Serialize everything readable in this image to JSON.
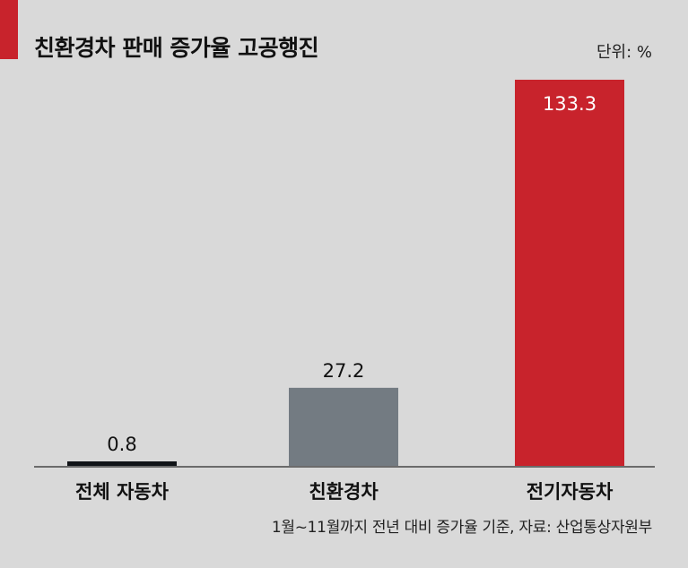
{
  "header": {
    "title": "친환경차 판매 증가율 고공행진",
    "unit": "단위: %"
  },
  "footer": {
    "source": "1월~11월까지 전년 대비 증가율 기준, 자료: 산업통상자원부"
  },
  "colors": {
    "accent": "#c8232c",
    "background": "#d9d9d9",
    "bar_total": "#111418",
    "bar_eco": "#737b82",
    "bar_ev": "#c8232c",
    "axis": "#6b6b6b"
  },
  "chart_data": {
    "type": "bar",
    "title": "친환경차 판매 증가율 고공행진",
    "unit": "단위: %",
    "categories": [
      "전체 자동차",
      "친환경차",
      "전기자동차"
    ],
    "values": [
      0.8,
      27.2,
      133.3
    ],
    "data_labels": [
      "0.8",
      "27.2",
      "133.3"
    ],
    "bar_colors": [
      "#111418",
      "#737b82",
      "#c8232c"
    ],
    "label_colors": [
      "#111111",
      "#111111",
      "#ffffff"
    ],
    "label_inside": [
      false,
      false,
      true
    ],
    "ylim": [
      0,
      133.3
    ],
    "grid": false,
    "legend": "none"
  }
}
